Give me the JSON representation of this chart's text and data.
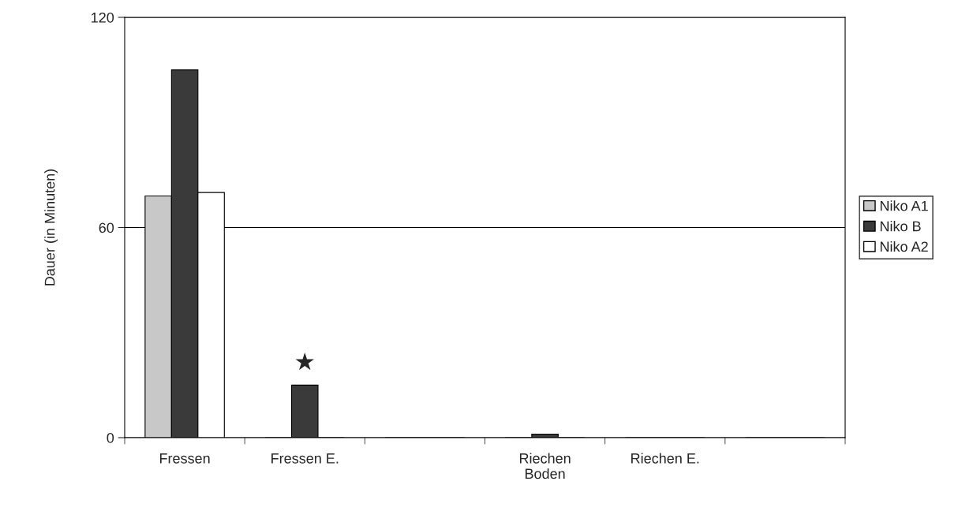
{
  "chart_data": {
    "type": "bar",
    "ylabel": "Dauer (in Minuten)",
    "categories": [
      "Fressen",
      "Fressen E.",
      null,
      "Riechen\nBoden",
      "Riechen E.",
      null
    ],
    "series": [
      {
        "name": "Niko A1",
        "color": "#c8c8c8",
        "values": [
          69,
          0,
          0,
          0,
          0,
          0
        ]
      },
      {
        "name": "Niko B",
        "color": "#3a3a3a",
        "values": [
          105,
          15,
          0,
          1,
          0,
          0
        ]
      },
      {
        "name": "Niko A2",
        "color": "#ffffff",
        "values": [
          70,
          0,
          0,
          0,
          0,
          0
        ]
      }
    ],
    "ylim": [
      0,
      120
    ],
    "yticks": [
      0,
      60,
      120
    ],
    "grid": "y",
    "legend": "right",
    "annotations": [
      {
        "text": "★",
        "x": "Fressen E.",
        "y": 15
      }
    ]
  }
}
